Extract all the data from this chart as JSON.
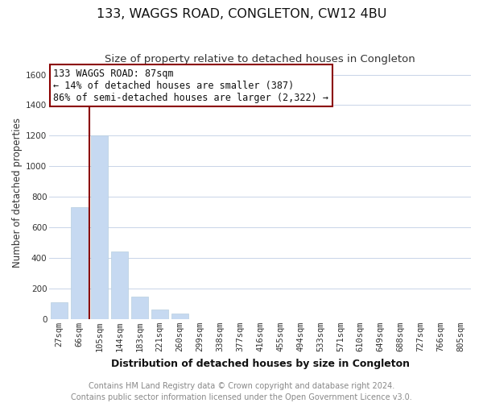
{
  "title": "133, WAGGS ROAD, CONGLETON, CW12 4BU",
  "subtitle": "Size of property relative to detached houses in Congleton",
  "xlabel": "Distribution of detached houses by size in Congleton",
  "ylabel": "Number of detached properties",
  "bar_labels": [
    "27sqm",
    "66sqm",
    "105sqm",
    "144sqm",
    "183sqm",
    "221sqm",
    "260sqm",
    "299sqm",
    "338sqm",
    "377sqm",
    "416sqm",
    "455sqm",
    "494sqm",
    "533sqm",
    "571sqm",
    "610sqm",
    "649sqm",
    "688sqm",
    "727sqm",
    "766sqm",
    "805sqm"
  ],
  "bar_heights": [
    110,
    730,
    1200,
    440,
    145,
    62,
    35,
    0,
    0,
    0,
    0,
    0,
    0,
    0,
    0,
    0,
    0,
    0,
    0,
    0,
    0
  ],
  "bar_color": "#c6d9f1",
  "bar_edge_color": "#b8cfe0",
  "highlight_line_color": "#8b0000",
  "ylim_max": 1650,
  "yticks": [
    0,
    200,
    400,
    600,
    800,
    1000,
    1200,
    1400,
    1600
  ],
  "annotation_title": "133 WAGGS ROAD: 87sqm",
  "annotation_line1": "← 14% of detached houses are smaller (387)",
  "annotation_line2": "86% of semi-detached houses are larger (2,322) →",
  "annotation_box_edge": "#8b0000",
  "footer_line1": "Contains HM Land Registry data © Crown copyright and database right 2024.",
  "footer_line2": "Contains public sector information licensed under the Open Government Licence v3.0.",
  "background_color": "#ffffff",
  "grid_color": "#c8d4e8",
  "title_fontsize": 11.5,
  "subtitle_fontsize": 9.5,
  "ylabel_fontsize": 8.5,
  "xlabel_fontsize": 9,
  "tick_fontsize": 7.5,
  "footer_fontsize": 7,
  "annotation_fontsize": 8.5
}
